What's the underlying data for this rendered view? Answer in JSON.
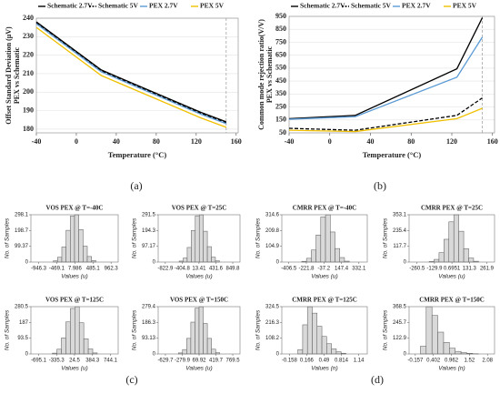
{
  "chart_data": [
    {
      "type": "line",
      "panel_label": "(a)",
      "xlabel": "Temperature (°C)",
      "ylabel": [
        "Offset Standard Deviation (μV)",
        "PEX vs Schematic"
      ],
      "x": [
        -40,
        25,
        125,
        150
      ],
      "xlim": [
        -40,
        162
      ],
      "xticks": [
        -40,
        0,
        40,
        80,
        120,
        160
      ],
      "ylim": [
        178,
        240
      ],
      "yticks": [
        180,
        190,
        200,
        210,
        220,
        230,
        240
      ],
      "grid": true,
      "vline": 150,
      "series": [
        {
          "name": "Schematic 2.7V",
          "color": "#000000",
          "dash": false,
          "values": [
            238,
            212,
            189,
            184
          ]
        },
        {
          "name": "Schematic 5V",
          "color": "#000000",
          "dash": true,
          "values": [
            237.5,
            211.5,
            188.5,
            183.5
          ]
        },
        {
          "name": "PEX 2.7V",
          "color": "#5b9bd5",
          "dash": false,
          "values": [
            237,
            211,
            188,
            183
          ]
        },
        {
          "name": "PEX 5V",
          "color": "#f0c000",
          "dash": false,
          "values": [
            235,
            209,
            186,
            181
          ]
        }
      ]
    },
    {
      "type": "line",
      "panel_label": "(b)",
      "xlabel": "Temperature (°C)",
      "ylabel": [
        "Common mode rejection ratio(V/V)",
        "PEX vs Schematic"
      ],
      "x": [
        -40,
        25,
        125,
        150
      ],
      "xlim": [
        -40,
        162
      ],
      "xticks": [
        -40,
        0,
        40,
        80,
        120,
        160
      ],
      "ylim": [
        50,
        950
      ],
      "yticks": [
        50,
        150,
        250,
        350,
        450,
        550,
        650,
        750,
        850,
        950
      ],
      "grid": true,
      "vline": 150,
      "series": [
        {
          "name": "Schematic 2.7V",
          "color": "#000000",
          "dash": false,
          "values": [
            160,
            185,
            545,
            940
          ]
        },
        {
          "name": "Schematic 5V",
          "color": "#000000",
          "dash": true,
          "values": [
            85,
            70,
            185,
            320
          ]
        },
        {
          "name": "PEX 2.7V",
          "color": "#5b9bd5",
          "dash": false,
          "values": [
            155,
            175,
            480,
            790
          ]
        },
        {
          "name": "PEX 5V",
          "color": "#f0c000",
          "dash": false,
          "values": [
            70,
            60,
            160,
            240
          ]
        }
      ]
    },
    {
      "type": "histogram",
      "panel_label": "(c)",
      "title": "VOS PEX @ T=-40C",
      "xlabel": "Values (u)",
      "ylabel": "No. of Samples",
      "color": "#d9d9d9",
      "bins": [
        -560,
        -448,
        -336,
        -224,
        -112,
        0,
        112,
        224,
        336,
        448,
        560
      ],
      "counts": [
        8,
        30,
        95,
        200,
        290,
        298,
        205,
        100,
        35,
        10
      ],
      "xlim": [
        -1150,
        1150
      ],
      "xticks": [
        -946.3,
        -469.1,
        7.986,
        485.1,
        962.3
      ],
      "ylim": [
        0,
        298.1
      ],
      "yticks": [
        0,
        99.37,
        198.7,
        298.1
      ]
    },
    {
      "type": "histogram",
      "title": "VOS PEX @ T=25C",
      "xlabel": "Values (u)",
      "ylabel": "No. of Samples",
      "color": "#d9d9d9",
      "bins": [
        -480,
        -380,
        -280,
        -180,
        -80,
        20,
        120,
        220,
        320,
        420,
        520
      ],
      "counts": [
        6,
        25,
        90,
        195,
        285,
        291,
        190,
        95,
        30,
        8
      ],
      "xlim": [
        -1000,
        1030
      ],
      "xticks": [
        -822.9,
        -404.8,
        13.41,
        431.6,
        849.8
      ],
      "ylim": [
        0,
        291.5
      ],
      "yticks": [
        0,
        97.17,
        194.3,
        291.5
      ]
    },
    {
      "type": "histogram",
      "title": "VOS PEX @ T=125C",
      "xlabel": "Values (u)",
      "ylabel": "No. of Samples",
      "color": "#d9d9d9",
      "bins": [
        -420,
        -330,
        -240,
        -150,
        -60,
        30,
        120,
        210,
        300,
        390,
        480
      ],
      "counts": [
        5,
        28,
        95,
        190,
        270,
        280,
        185,
        90,
        30,
        6
      ],
      "xlim": [
        -850,
        900
      ],
      "xticks": [
        -695.1,
        -335.3,
        24.5,
        384.3,
        744.1
      ],
      "ylim": [
        0,
        280.5
      ],
      "yticks": [
        0,
        93.5,
        187,
        280.5
      ]
    },
    {
      "type": "histogram",
      "title": "VOS PEX @ T=150C",
      "xlabel": "Values (u)",
      "ylabel": "No. of Samples",
      "color": "#d9d9d9",
      "bins": [
        -360,
        -274,
        -188,
        -102,
        -16,
        70,
        156,
        242,
        328,
        414,
        500
      ],
      "counts": [
        6,
        26,
        92,
        188,
        270,
        279,
        180,
        92,
        28,
        7
      ],
      "xlim": [
        -780,
        920
      ],
      "xticks": [
        -629.7,
        -279.9,
        69.92,
        419.7,
        769.5
      ],
      "ylim": [
        0,
        279.4
      ],
      "yticks": [
        0,
        93.13,
        186.3,
        279.4
      ]
    },
    {
      "type": "histogram",
      "panel_label": "(d)",
      "title": "CMRR PEX @ T=-40C",
      "xlabel": "Values (u)",
      "ylabel": "No. of Samples",
      "color": "#d9d9d9",
      "bins": [
        -270,
        -220,
        -170,
        -120,
        -70,
        -20,
        30,
        80,
        130,
        180,
        230
      ],
      "counts": [
        5,
        25,
        80,
        180,
        300,
        314,
        200,
        90,
        30,
        6
      ],
      "xlim": [
        -480,
        420
      ],
      "xticks": [
        -406.5,
        -221.8,
        -37.2,
        147.4,
        332.1
      ],
      "ylim": [
        0,
        314.6
      ],
      "yticks": [
        0,
        104.9,
        209.8,
        314.6
      ]
    },
    {
      "type": "histogram",
      "title": "CMRR PEX @ T=25C",
      "xlabel": "Values (u)",
      "ylabel": "No. of Samples",
      "color": "#d9d9d9",
      "bins": [
        -170,
        -133,
        -96,
        -59,
        -22,
        15,
        52,
        89,
        126,
        163,
        200
      ],
      "counts": [
        4,
        20,
        70,
        170,
        300,
        353,
        230,
        100,
        30,
        6
      ],
      "xlim": [
        -320,
        320
      ],
      "xticks": [
        -260.5,
        -129.9,
        0.6951,
        131.3,
        261.9
      ],
      "ylim": [
        0,
        353.1
      ],
      "yticks": [
        0,
        117.7,
        235.4,
        353.1
      ]
    },
    {
      "type": "histogram",
      "title": "CMRR PEX @ T=125C",
      "xlabel": "Values (n)",
      "ylabel": "No. of Samples",
      "color": "#d9d9d9",
      "bins": [
        0,
        0.09,
        0.18,
        0.27,
        0.36,
        0.45,
        0.54,
        0.63,
        0.72,
        0.81,
        0.9
      ],
      "counts": [
        30,
        200,
        324,
        280,
        190,
        120,
        70,
        35,
        15,
        5
      ],
      "xlim": [
        -0.3,
        1.3
      ],
      "xticks": [
        -0.158,
        0.166,
        0.49,
        0.814,
        1.14
      ],
      "ylim": [
        0,
        324.5
      ],
      "yticks": [
        0,
        108.2,
        216.3,
        324.5
      ]
    },
    {
      "type": "histogram",
      "title": "CMRR PEX @ T=150C",
      "xlabel": "Values (n)",
      "ylabel": "No. of Samples",
      "color": "#d9d9d9",
      "bins": [
        0,
        0.18,
        0.36,
        0.54,
        0.72,
        0.9,
        1.08,
        1.26,
        1.44,
        1.62,
        1.8
      ],
      "counts": [
        60,
        368,
        300,
        170,
        90,
        45,
        20,
        10,
        5,
        2
      ],
      "xlim": [
        -0.35,
        2.3
      ],
      "xticks": [
        -0.157,
        0.402,
        0.962,
        1.52,
        2.08
      ],
      "ylim": [
        0,
        368.5
      ],
      "yticks": [
        0,
        122.9,
        245.7,
        368.5
      ]
    }
  ]
}
